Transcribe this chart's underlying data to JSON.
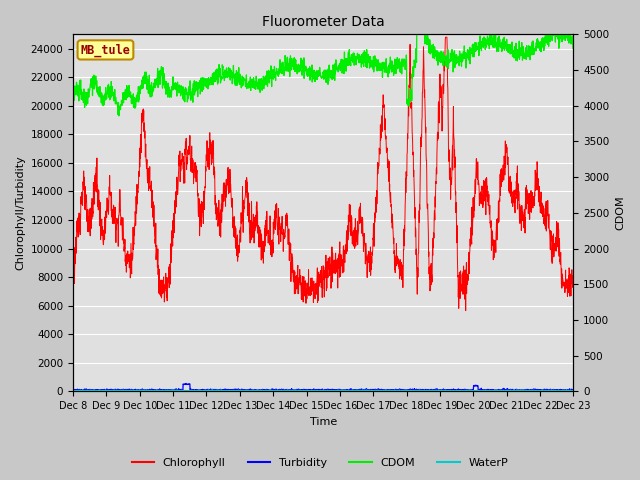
{
  "title": "Fluorometer Data",
  "xlabel": "Time",
  "ylabel_left": "Chlorophyll/Turbidity",
  "ylabel_right": "CDOM",
  "ylim_left": [
    0,
    25000
  ],
  "ylim_right": [
    0,
    5000
  ],
  "yticks_left": [
    0,
    2000,
    4000,
    6000,
    8000,
    10000,
    12000,
    14000,
    16000,
    18000,
    20000,
    22000,
    24000
  ],
  "yticks_right": [
    0,
    500,
    1000,
    1500,
    2000,
    2500,
    3000,
    3500,
    4000,
    4500,
    5000
  ],
  "annotation_text": "MB_tule",
  "fig_bg_color": "#c8c8c8",
  "plot_bg_color": "#e0e0e0",
  "grid_color": "#ffffff",
  "chlorophyll_color": "#ff0000",
  "turbidity_color": "#0000ff",
  "cdom_color": "#00ee00",
  "waterp_color": "#00cccc",
  "legend_labels": [
    "Chlorophyll",
    "Turbidity",
    "CDOM",
    "WaterP"
  ],
  "xtick_labels": [
    "Dec 8",
    "Dec 9",
    "Dec 10",
    "Dec 11",
    "Dec 12",
    "Dec 13",
    "Dec 14",
    "Dec 15",
    "Dec 16",
    "Dec 17",
    "Dec 18",
    "Dec 19",
    "Dec 20",
    "Dec 21",
    "Dec 22",
    "Dec 23"
  ]
}
